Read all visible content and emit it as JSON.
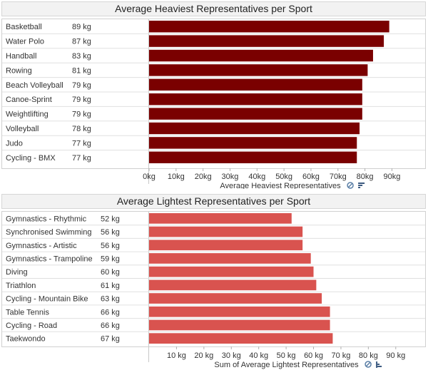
{
  "chart_data": [
    {
      "type": "bar",
      "orientation": "horizontal",
      "title": "Average Heaviest Representatives per Sport",
      "xlabel": "Average Heaviest Representatives",
      "unit": "kg",
      "categories": [
        "Basketball",
        "Water Polo",
        "Handball",
        "Rowing",
        "Beach Volleyball",
        "Canoe-Sprint",
        "Weightlifting",
        "Volleyball",
        "Judo",
        "Cycling - BMX"
      ],
      "values": [
        89,
        87,
        83,
        81,
        79,
        79,
        79,
        78,
        77,
        77
      ],
      "value_labels": [
        "89 kg",
        "87 kg",
        "83 kg",
        "81 kg",
        "79 kg",
        "79 kg",
        "79 kg",
        "78 kg",
        "77 kg",
        "77 kg"
      ],
      "ticks": [
        0,
        10,
        20,
        30,
        40,
        50,
        60,
        70,
        80,
        90
      ],
      "tick_labels": [
        "0kg",
        "10kg",
        "20kg",
        "30kg",
        "40kg",
        "50kg",
        "60kg",
        "70kg",
        "80kg",
        "90kg"
      ],
      "xlim": [
        0,
        92
      ],
      "bar_color": "#7a0000",
      "grid": false
    },
    {
      "type": "bar",
      "orientation": "horizontal",
      "title": "Average Lightest Representatives per Sport",
      "xlabel": "Sum of Average Lightest Representatives",
      "unit": "kg",
      "categories": [
        "Gymnastics - Rhythmic",
        "Synchronised Swimming",
        "Gymnastics - Artistic",
        "Gymnastics - Trampoline",
        "Diving",
        "Triathlon",
        "Cycling - Mountain Bike",
        "Table Tennis",
        "Cycling - Road",
        "Taekwondo"
      ],
      "values": [
        52,
        56,
        56,
        59,
        60,
        61,
        63,
        66,
        66,
        67
      ],
      "value_labels": [
        "52 kg",
        "56 kg",
        "56 kg",
        "59 kg",
        "60 kg",
        "61 kg",
        "63 kg",
        "66 kg",
        "66 kg",
        "67 kg"
      ],
      "ticks": [
        10,
        20,
        30,
        40,
        50,
        60,
        70,
        80,
        90
      ],
      "tick_labels": [
        "10 kg",
        "20 kg",
        "30 kg",
        "40 kg",
        "50 kg",
        "60 kg",
        "70 kg",
        "80 kg",
        "90 kg"
      ],
      "xlim": [
        0,
        95
      ],
      "bar_color": "#d9534f",
      "grid": false
    }
  ],
  "icons": {
    "filter": "funnel-icon",
    "sort": "sort-icon"
  }
}
